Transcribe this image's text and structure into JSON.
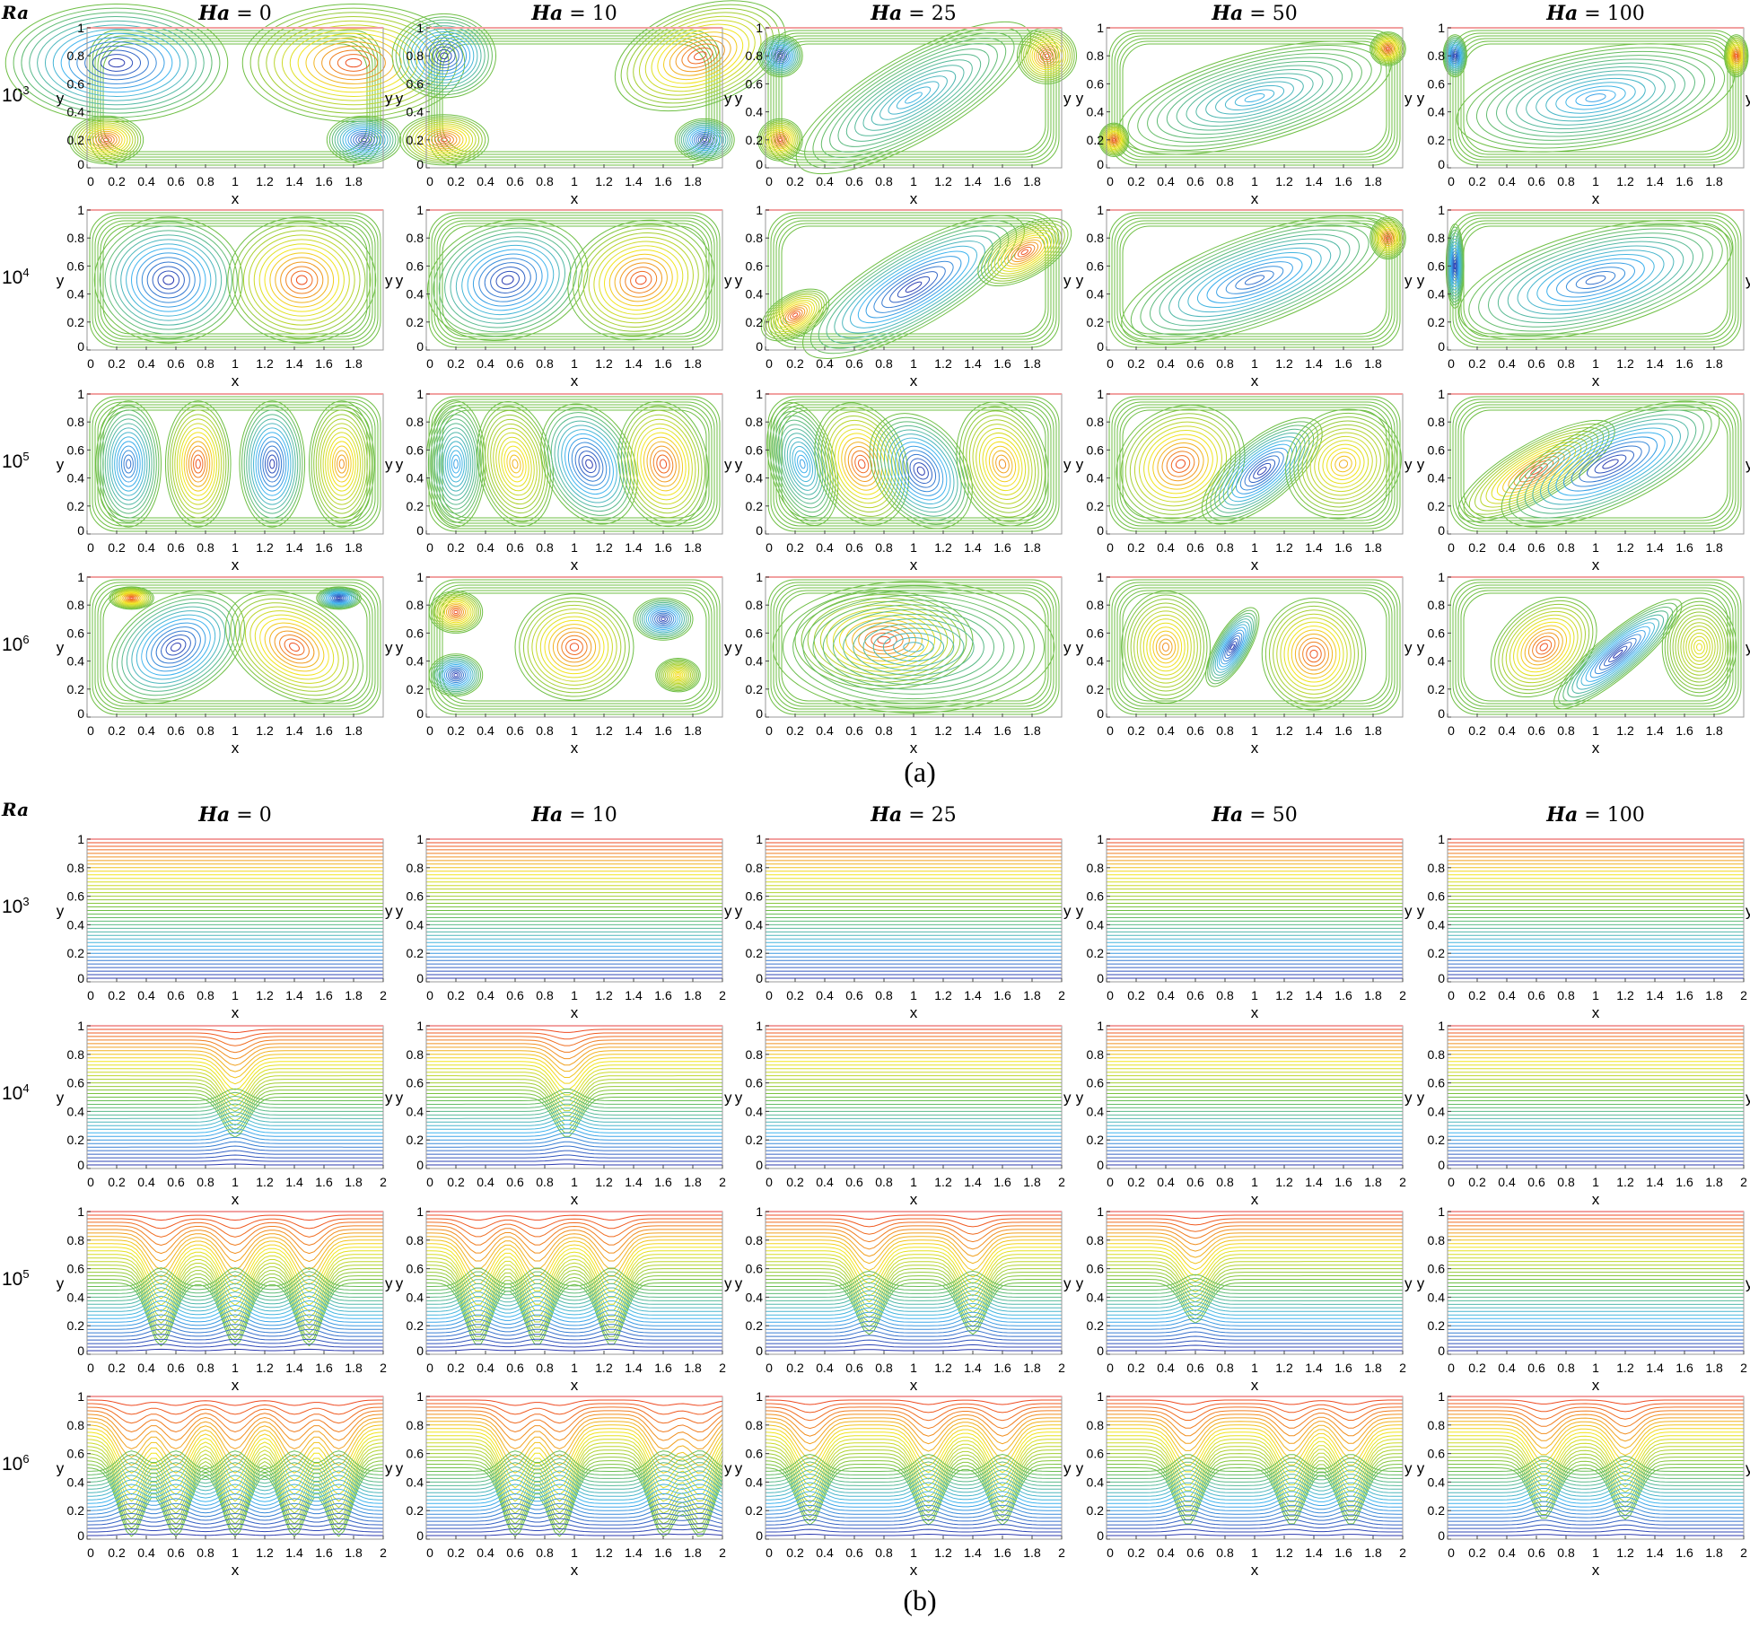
{
  "figure": {
    "ra_label": "Ra",
    "sub_a": "(a)",
    "sub_b": "(b)"
  },
  "columns": [
    {
      "ha_prefix": "Ha",
      "eq": " = ",
      "value": "0"
    },
    {
      "ha_prefix": "Ha",
      "eq": " = ",
      "value": "10"
    },
    {
      "ha_prefix": "Ha",
      "eq": " = ",
      "value": "25"
    },
    {
      "ha_prefix": "Ha",
      "eq": " = ",
      "value": "50"
    },
    {
      "ha_prefix": "Ha",
      "eq": " = ",
      "value": "100"
    }
  ],
  "rows": [
    {
      "base": "10",
      "exp": "3"
    },
    {
      "base": "10",
      "exp": "4"
    },
    {
      "base": "10",
      "exp": "5"
    },
    {
      "base": "10",
      "exp": "6"
    }
  ],
  "chart_data": {
    "type": "contour",
    "xlabel": "x",
    "ylabel": "y",
    "xlim": [
      0,
      2
    ],
    "ylim": [
      0,
      1
    ],
    "yticks": [
      "0",
      "0.2",
      "0.4",
      "0.6",
      "0.8",
      "1"
    ],
    "xticks_a": [
      "0",
      "0.2",
      "0.4",
      "0.6",
      "0.8",
      "1",
      "1.2",
      "1.4",
      "1.6",
      "1.8"
    ],
    "xticks_b": [
      "0",
      "0.2",
      "0.4",
      "0.6",
      "0.8",
      "1",
      "1.2",
      "1.4",
      "1.6",
      "1.8",
      "2"
    ],
    "panel_a_description": "streamlines",
    "panel_b_description": "isotherms",
    "colormap": [
      "#2c2ca8",
      "#3fb4ef",
      "#6fbf45",
      "#f2e51e",
      "#ef3a24"
    ],
    "panels_a": [
      [
        [
          [
            0.2,
            0.75,
            0.75,
            0.42,
            0,
            -1
          ],
          [
            1.8,
            0.75,
            0.75,
            0.42,
            0,
            1
          ],
          [
            0.13,
            0.2,
            0.25,
            0.17,
            0,
            1
          ],
          [
            1.87,
            0.2,
            0.25,
            0.17,
            0,
            -1
          ]
        ],
        [
          [
            0.12,
            0.8,
            0.35,
            0.3,
            0,
            -1
          ],
          [
            1.85,
            0.8,
            0.6,
            0.35,
            -20,
            1
          ],
          [
            0.12,
            0.2,
            0.3,
            0.18,
            0,
            1
          ],
          [
            1.88,
            0.2,
            0.2,
            0.15,
            0,
            -1
          ]
        ],
        [
          [
            0.1,
            0.8,
            0.15,
            0.15,
            0,
            -1
          ],
          [
            1.0,
            0.5,
            0.9,
            0.3,
            -30,
            -0.5
          ],
          [
            1.9,
            0.8,
            0.2,
            0.2,
            0,
            1
          ],
          [
            0.1,
            0.2,
            0.15,
            0.15,
            0,
            1
          ]
        ],
        [
          [
            1.0,
            0.5,
            0.95,
            0.32,
            -15,
            -0.5
          ],
          [
            1.9,
            0.85,
            0.12,
            0.12,
            0,
            1
          ],
          [
            0.05,
            0.2,
            0.1,
            0.12,
            0,
            1
          ]
        ],
        [
          [
            1.0,
            0.5,
            0.95,
            0.35,
            -10,
            -0.6
          ],
          [
            0.05,
            0.8,
            0.08,
            0.15,
            0,
            -1
          ],
          [
            1.95,
            0.8,
            0.08,
            0.15,
            0,
            1
          ]
        ]
      ],
      [
        [
          [
            0.55,
            0.5,
            0.5,
            0.45,
            0,
            -1
          ],
          [
            1.45,
            0.5,
            0.5,
            0.45,
            0,
            1
          ]
        ],
        [
          [
            0.55,
            0.5,
            0.55,
            0.42,
            -15,
            -1
          ],
          [
            1.45,
            0.5,
            0.5,
            0.42,
            -15,
            1
          ]
        ],
        [
          [
            1.0,
            0.45,
            0.85,
            0.28,
            -30,
            -1
          ],
          [
            0.2,
            0.25,
            0.25,
            0.15,
            -30,
            1
          ],
          [
            1.75,
            0.7,
            0.35,
            0.18,
            -30,
            1
          ]
        ],
        [
          [
            1.0,
            0.5,
            0.95,
            0.32,
            -20,
            -0.8
          ],
          [
            1.9,
            0.8,
            0.12,
            0.15,
            0,
            1
          ]
        ],
        [
          [
            1.0,
            0.5,
            0.95,
            0.35,
            -15,
            -0.8
          ],
          [
            0.05,
            0.6,
            0.06,
            0.3,
            0,
            -1
          ]
        ]
      ],
      [
        [
          [
            0.28,
            0.5,
            0.22,
            0.45,
            0,
            -0.8
          ],
          [
            0.75,
            0.5,
            0.22,
            0.45,
            0,
            1
          ],
          [
            1.25,
            0.5,
            0.22,
            0.45,
            0,
            -1
          ],
          [
            1.72,
            0.5,
            0.22,
            0.45,
            0,
            0.8
          ]
        ],
        [
          [
            0.2,
            0.5,
            0.2,
            0.45,
            0,
            -0.6
          ],
          [
            0.6,
            0.5,
            0.25,
            0.45,
            -10,
            0.7
          ],
          [
            1.1,
            0.5,
            0.3,
            0.45,
            -25,
            -1
          ],
          [
            1.6,
            0.5,
            0.3,
            0.45,
            -10,
            1
          ]
        ],
        [
          [
            0.25,
            0.5,
            0.22,
            0.45,
            -15,
            -0.6
          ],
          [
            0.65,
            0.5,
            0.3,
            0.45,
            -20,
            1
          ],
          [
            1.05,
            0.45,
            0.3,
            0.45,
            -35,
            -1
          ],
          [
            1.6,
            0.5,
            0.3,
            0.45,
            -15,
            0.8
          ]
        ],
        [
          [
            0.5,
            0.5,
            0.45,
            0.4,
            -30,
            1
          ],
          [
            1.05,
            0.45,
            0.5,
            0.22,
            -40,
            -1
          ],
          [
            1.6,
            0.5,
            0.4,
            0.38,
            -30,
            0.7
          ]
        ],
        [
          [
            0.6,
            0.45,
            0.6,
            0.2,
            -30,
            1
          ],
          [
            1.1,
            0.5,
            0.8,
            0.3,
            -25,
            -1
          ]
        ]
      ],
      [
        [
          [
            0.6,
            0.5,
            0.5,
            0.35,
            -30,
            -1
          ],
          [
            1.4,
            0.5,
            0.5,
            0.35,
            30,
            1
          ],
          [
            0.3,
            0.85,
            0.15,
            0.08,
            0,
            1
          ],
          [
            1.7,
            0.85,
            0.15,
            0.08,
            0,
            -1
          ]
        ],
        [
          [
            0.2,
            0.75,
            0.18,
            0.15,
            0,
            1
          ],
          [
            0.2,
            0.3,
            0.18,
            0.15,
            0,
            -1
          ],
          [
            1.0,
            0.5,
            0.4,
            0.38,
            0,
            1
          ],
          [
            1.6,
            0.7,
            0.2,
            0.15,
            0,
            -1
          ],
          [
            1.7,
            0.3,
            0.15,
            0.12,
            0,
            0.6
          ]
        ],
        [
          [
            0.8,
            0.55,
            0.6,
            0.35,
            0,
            1
          ],
          [
            1.0,
            0.5,
            0.95,
            0.47,
            0,
            -0.4
          ]
        ],
        [
          [
            0.4,
            0.5,
            0.3,
            0.4,
            0,
            0.8
          ],
          [
            0.85,
            0.5,
            0.3,
            0.12,
            -60,
            -1
          ],
          [
            1.4,
            0.45,
            0.35,
            0.4,
            0,
            1
          ]
        ],
        [
          [
            0.65,
            0.5,
            0.4,
            0.3,
            -40,
            1
          ],
          [
            1.15,
            0.45,
            0.55,
            0.15,
            -40,
            -1
          ],
          [
            1.7,
            0.5,
            0.25,
            0.35,
            0,
            0.5
          ]
        ]
      ]
    ],
    "panels_b": [
      [
        {
          "amp": 0,
          "plumes": []
        },
        {
          "amp": 0,
          "plumes": []
        },
        {
          "amp": 0,
          "plumes": []
        },
        {
          "amp": 0,
          "plumes": []
        },
        {
          "amp": 0,
          "plumes": []
        }
      ],
      [
        {
          "amp": 0.35,
          "plumes": [
            1.0
          ]
        },
        {
          "amp": 0.35,
          "plumes": [
            0.95
          ]
        },
        {
          "amp": 0,
          "plumes": []
        },
        {
          "amp": 0,
          "plumes": []
        },
        {
          "amp": 0,
          "plumes": []
        }
      ],
      [
        {
          "amp": 0.55,
          "plumes": [
            0.5,
            1.0,
            1.5
          ]
        },
        {
          "amp": 0.55,
          "plumes": [
            0.35,
            0.75,
            1.25
          ]
        },
        {
          "amp": 0.45,
          "plumes": [
            0.7,
            1.4
          ]
        },
        {
          "amp": 0.35,
          "plumes": [
            0.6
          ]
        },
        {
          "amp": 0,
          "plumes": []
        }
      ],
      [
        {
          "amp": 0.6,
          "plumes": [
            0.3,
            0.6,
            1.0,
            1.4,
            1.7
          ]
        },
        {
          "amp": 0.6,
          "plumes": [
            0.6,
            0.9,
            1.6,
            1.85
          ]
        },
        {
          "amp": 0.5,
          "plumes": [
            0.3,
            1.1,
            1.6
          ]
        },
        {
          "amp": 0.5,
          "plumes": [
            0.55,
            1.25,
            1.65
          ]
        },
        {
          "amp": 0.45,
          "plumes": [
            0.65,
            1.2
          ]
        }
      ]
    ]
  }
}
